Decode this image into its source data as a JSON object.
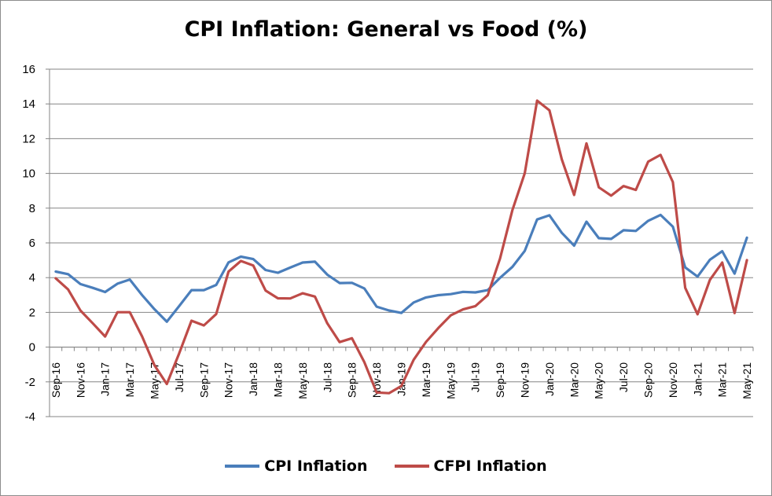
{
  "chart_data": {
    "type": "line",
    "title": "CPI Inflation: General vs Food (%)",
    "xlabel": "",
    "ylabel": "",
    "ylim": [
      -4,
      16
    ],
    "yticks": [
      16,
      14,
      12,
      10,
      8,
      6,
      4,
      2,
      0,
      -2,
      -4
    ],
    "grid": true,
    "legend_position": "bottom",
    "x": [
      "Sep-16",
      "Oct-16",
      "Nov-16",
      "Dec-16",
      "Jan-17",
      "Feb-17",
      "Mar-17",
      "Apr-17",
      "May-17",
      "Jun-17",
      "Jul-17",
      "Aug-17",
      "Sep-17",
      "Oct-17",
      "Nov-17",
      "Dec-17",
      "Jan-18",
      "Feb-18",
      "Mar-18",
      "Apr-18",
      "May-18",
      "Jun-18",
      "Jul-18",
      "Aug-18",
      "Sep-18",
      "Oct-18",
      "Nov-18",
      "Dec-18",
      "Jan-19",
      "Feb-19",
      "Mar-19",
      "Apr-19",
      "May-19",
      "Jun-19",
      "Jul-19",
      "Aug-19",
      "Sep-19",
      "Oct-19",
      "Nov-19",
      "Dec-19",
      "Jan-20",
      "Feb-20",
      "Mar-20",
      "Apr-20",
      "May-20",
      "Jun-20",
      "Jul-20",
      "Aug-20",
      "Sep-20",
      "Oct-20",
      "Nov-20",
      "Dec-20",
      "Jan-21",
      "Feb-21",
      "Mar-21",
      "Apr-21",
      "May-21"
    ],
    "x_tick_labels": [
      "Sep-16",
      "Nov-16",
      "Jan-17",
      "Mar-17",
      "May-17",
      "Jul-17",
      "Sep-17",
      "Nov-17",
      "Jan-18",
      "Mar-18",
      "May-18",
      "Jul-18",
      "Sep-18",
      "Nov-18",
      "Jan-19",
      "Mar-19",
      "May-19",
      "Jul-19",
      "Sep-19",
      "Nov-19",
      "Jan-20",
      "Mar-20",
      "May-20",
      "Jul-20",
      "Sep-20",
      "Nov-20",
      "Jan-21",
      "Mar-21",
      "May-21"
    ],
    "series": [
      {
        "name": "CPI Inflation",
        "color": "#4a7ebb",
        "values": [
          4.35,
          4.2,
          3.63,
          3.41,
          3.17,
          3.65,
          3.89,
          2.99,
          2.18,
          1.46,
          2.36,
          3.28,
          3.28,
          3.58,
          4.88,
          5.21,
          5.07,
          4.44,
          4.28,
          4.58,
          4.87,
          4.92,
          4.17,
          3.69,
          3.7,
          3.38,
          2.33,
          2.11,
          1.97,
          2.57,
          2.86,
          2.99,
          3.05,
          3.18,
          3.15,
          3.28,
          3.99,
          4.62,
          5.54,
          7.35,
          7.59,
          6.58,
          5.84,
          7.22,
          6.27,
          6.23,
          6.73,
          6.69,
          7.27,
          7.61,
          6.93,
          4.59,
          4.06,
          5.03,
          5.52,
          4.23,
          6.3
        ]
      },
      {
        "name": "CFPI Inflation",
        "color": "#be4b48",
        "values": [
          3.96,
          3.32,
          2.11,
          1.37,
          0.61,
          2.01,
          2.01,
          0.61,
          -1.05,
          -2.12,
          -0.36,
          1.52,
          1.25,
          1.9,
          4.35,
          4.96,
          4.7,
          3.26,
          2.81,
          2.8,
          3.1,
          2.91,
          1.37,
          0.29,
          0.51,
          -0.86,
          -2.61,
          -2.65,
          -2.24,
          -0.73,
          0.3,
          1.1,
          1.83,
          2.17,
          2.36,
          2.99,
          5.11,
          7.89,
          10.01,
          14.19,
          13.63,
          10.81,
          8.76,
          11.73,
          9.2,
          8.72,
          9.27,
          9.05,
          10.68,
          11.07,
          9.5,
          3.41,
          1.89,
          3.87,
          4.87,
          1.96,
          5.01
        ]
      }
    ]
  }
}
